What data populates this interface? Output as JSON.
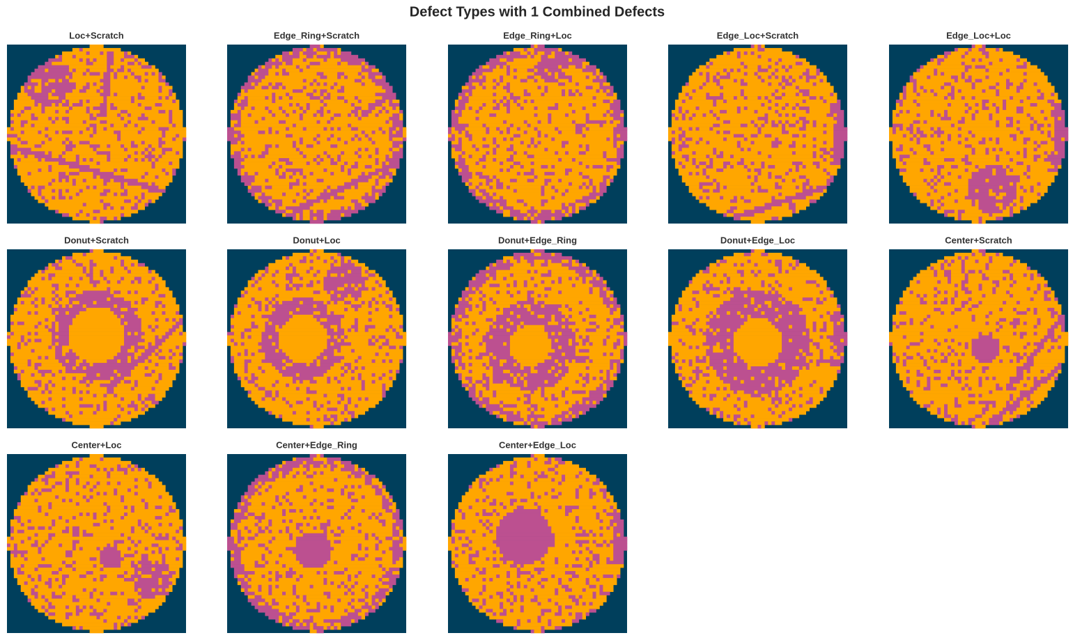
{
  "title": "Defect Types with 1 Combined Defects",
  "panels": [
    {
      "title": "Loc+Scratch"
    },
    {
      "title": "Edge_Ring+Scratch"
    },
    {
      "title": "Edge_Ring+Loc"
    },
    {
      "title": "Edge_Loc+Scratch"
    },
    {
      "title": "Edge_Loc+Loc"
    },
    {
      "title": "Donut+Scratch"
    },
    {
      "title": "Donut+Loc"
    },
    {
      "title": "Donut+Edge_Ring"
    },
    {
      "title": "Donut+Edge_Loc"
    },
    {
      "title": "Center+Scratch"
    },
    {
      "title": "Center+Loc"
    },
    {
      "title": "Center+Edge_Ring"
    },
    {
      "title": "Center+Edge_Loc"
    }
  ]
}
